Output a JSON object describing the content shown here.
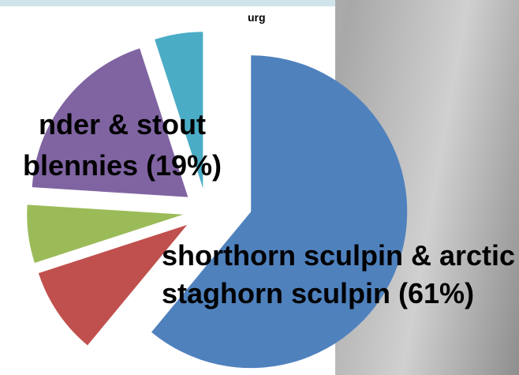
{
  "chart_data": {
    "type": "pie",
    "categories": [
      "shorthorn sculpin & arctic staghorn sculpin (61%)",
      null,
      null,
      "nder & stout blennies (19%)",
      "urg"
    ],
    "values": [
      61,
      9,
      6,
      19,
      5
    ],
    "colors": [
      "#4f81bd",
      "#c0504d",
      "#9bbb59",
      "#8064a2",
      "#4bacc6"
    ]
  }
}
